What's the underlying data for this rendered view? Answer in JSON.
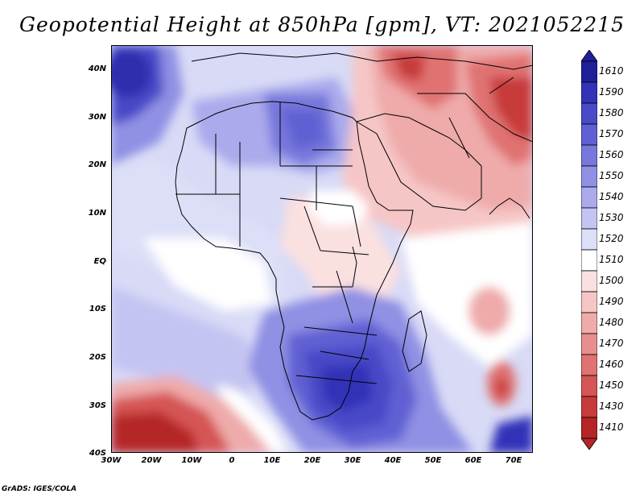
{
  "title": "Geopotential Height at 850hPa [gpm], VT: 2021052215",
  "footer": "GrADS: IGES/COLA",
  "map": {
    "lat_labels": [
      "40N",
      "30N",
      "20N",
      "10N",
      "EQ",
      "10S",
      "20S",
      "30S",
      "40S"
    ],
    "lon_labels": [
      "30W",
      "20W",
      "10W",
      "0",
      "10E",
      "20E",
      "30E",
      "40E",
      "50E",
      "60E",
      "70E"
    ],
    "lat_range": [
      -40,
      44
    ],
    "lon_range": [
      -30,
      74
    ]
  },
  "colorbar": {
    "levels": [
      "1610",
      "1590",
      "1580",
      "1570",
      "1560",
      "1550",
      "1540",
      "1530",
      "1520",
      "1510",
      "1500",
      "1490",
      "1480",
      "1470",
      "1460",
      "1450",
      "1430",
      "1410"
    ],
    "colors": [
      "#1f1f9a",
      "#3333b8",
      "#4a4ac8",
      "#6060d4",
      "#7777dc",
      "#9090e4",
      "#aaaaec",
      "#c4c4f2",
      "#dddff8",
      "#ffffff",
      "#fbe0e0",
      "#f6c6c6",
      "#efaaaa",
      "#e88e8e",
      "#e07272",
      "#d65555",
      "#c83b3b",
      "#b52525"
    ]
  },
  "colors": {
    "high_center": "#2d2dae",
    "low_center": "#b52525",
    "coastline": "#000000"
  }
}
